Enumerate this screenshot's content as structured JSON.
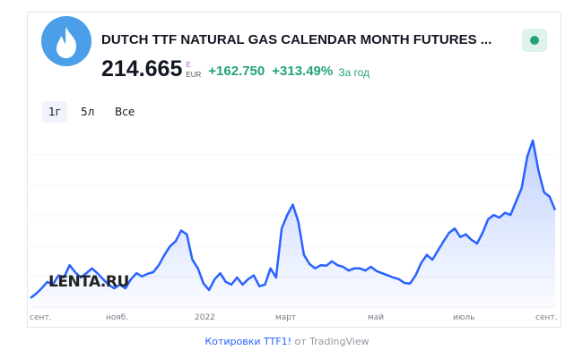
{
  "header": {
    "title": "DUTCH TTF NATURAL GAS CALENDAR MONTH FUTURES ...",
    "price": "214.665",
    "currency_top": "E",
    "currency": "EUR",
    "change": "+162.750",
    "change_pct": "+313.49%",
    "period": "За год",
    "icon": "flame-icon",
    "status_color": "#22a37a"
  },
  "ranges": [
    "1г",
    "5л",
    "Все"
  ],
  "active_range": "1г",
  "watermark": "LENTA.RU",
  "footer": {
    "link": "Котировки TTF1!",
    "suffix": " от TradingView"
  },
  "chart_data": {
    "type": "area",
    "title": "",
    "xlabel": "",
    "ylabel": "",
    "x_tick_labels": [
      "сент.",
      "нояб.",
      "2022",
      "март",
      "май",
      "июль",
      "сент."
    ],
    "ylim": [
      32,
      372
    ],
    "grid": true,
    "line_color": "#2962ff",
    "values": [
      52,
      60,
      70,
      82,
      77,
      94,
      90,
      113,
      100,
      90,
      98,
      107,
      98,
      87,
      77,
      70,
      77,
      70,
      87,
      98,
      92,
      97,
      100,
      113,
      132,
      148,
      157,
      177,
      170,
      123,
      107,
      79,
      67,
      87,
      98,
      82,
      77,
      90,
      77,
      87,
      94,
      74,
      77,
      107,
      90,
      181,
      206,
      225,
      193,
      132,
      115,
      107,
      113,
      112,
      120,
      113,
      110,
      103,
      107,
      107,
      103,
      110,
      102,
      98,
      94,
      90,
      87,
      80,
      79,
      94,
      117,
      132,
      123,
      140,
      157,
      173,
      181,
      165,
      170,
      160,
      153,
      173,
      198,
      206,
      201,
      210,
      206,
      231,
      256,
      314,
      344,
      289,
      248,
      240,
      215
    ]
  }
}
